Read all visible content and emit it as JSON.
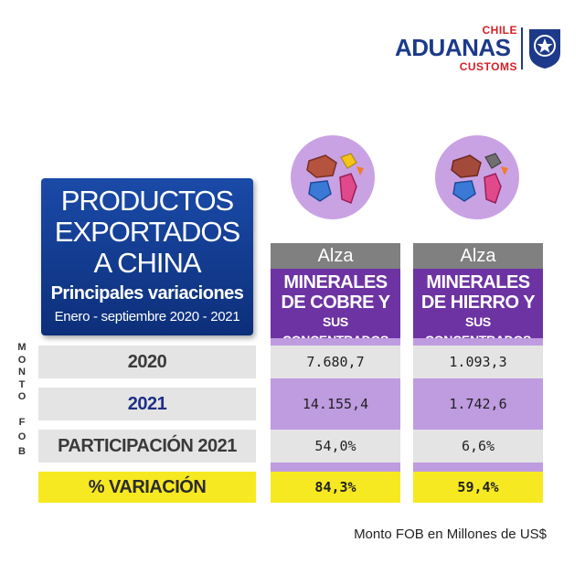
{
  "logo": {
    "chile": "CHILE",
    "main": "ADUANAS",
    "customs": "CUSTOMS",
    "badge_text": "CHILE"
  },
  "title": {
    "line1": "PRODUCTOS",
    "line2": "EXPORTADOS",
    "line3": "A CHINA",
    "subtitle": "Principales variaciones",
    "period": "Enero - septiembre 2020 - 2021"
  },
  "side_label": {
    "word1": [
      "M",
      "O",
      "N",
      "T",
      "O"
    ],
    "word2": [
      "F",
      "O",
      "B"
    ]
  },
  "columns": [
    {
      "icon": "copper-minerals-icon",
      "status": "Alza",
      "name_line1": "MINERALES",
      "name_line2": "DE COBRE Y",
      "name_line3": "SUS CONCENTRADOS",
      "v2020": "7.680,7",
      "v2021": "14.155,4",
      "participation": "54,0%",
      "variation": "84,3%"
    },
    {
      "icon": "iron-minerals-icon",
      "status": "Alza",
      "name_line1": "MINERALES",
      "name_line2": "DE HIERRO Y",
      "name_line3": "SUS CONCENTRADOS",
      "v2020": "1.093,3",
      "v2021": "1.742,6",
      "participation": "6,6%",
      "variation": "59,4%"
    }
  ],
  "rows": {
    "r2020": "2020",
    "r2021": "2021",
    "participation": "PARTICIPACIÓN 2021",
    "variation": "% VARIACIÓN"
  },
  "footnote": "Monto FOB en Millones de US$",
  "colors": {
    "title_bg": "#1a4aa8",
    "purple": "#6d33a3",
    "light_purple": "#bf9be0",
    "highlight_yellow": "#f7e921",
    "gray_header": "#808080",
    "row_gray": "#e4e4e4"
  }
}
